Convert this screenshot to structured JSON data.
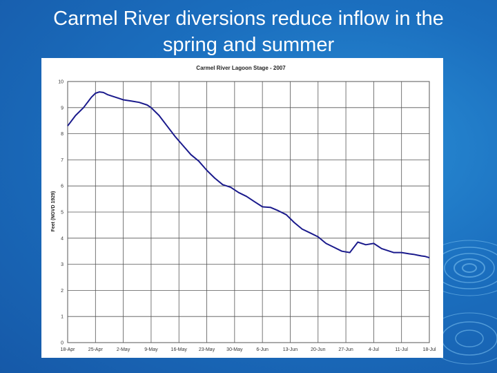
{
  "slide": {
    "title_line1": "Carmel River diversions reduce inflow in the",
    "title_line2": "spring and summer"
  },
  "colors": {
    "background": "#1b6fbf",
    "series_line": "#1a1a8c",
    "grid": "#555555"
  },
  "chart_data": {
    "type": "line",
    "title": "Carmel River Lagoon Stage - 2007",
    "xlabel": "",
    "ylabel": "Feet (NGVD 1929)",
    "ylim": [
      0,
      10
    ],
    "yticks": [
      0,
      1,
      2,
      3,
      4,
      5,
      6,
      7,
      8,
      9,
      10
    ],
    "xticks": [
      "18-Apr",
      "25-Apr",
      "2-May",
      "9-May",
      "16-May",
      "23-May",
      "30-May",
      "6-Jun",
      "13-Jun",
      "20-Jun",
      "27-Jun",
      "4-Jul",
      "11-Jul",
      "18-Jul"
    ],
    "x_unit": "days since 18-Apr",
    "xlim": [
      0,
      91
    ],
    "grid": true,
    "series": [
      {
        "name": "Lagoon Stage",
        "x": [
          0,
          2,
          4,
          6,
          7,
          8,
          9,
          10,
          11,
          12,
          13,
          14,
          16,
          18,
          20,
          21,
          23,
          25,
          27,
          29,
          31,
          33,
          35,
          37,
          39,
          41,
          43,
          45,
          47,
          49,
          51,
          53,
          55,
          57,
          59,
          61,
          63,
          65,
          67,
          69,
          71,
          73,
          75,
          77,
          78,
          79,
          80,
          81,
          82,
          84,
          86,
          87,
          88,
          89,
          90,
          91
        ],
        "y": [
          8.3,
          8.7,
          9.0,
          9.4,
          9.55,
          9.6,
          9.58,
          9.5,
          9.45,
          9.4,
          9.35,
          9.3,
          9.25,
          9.2,
          9.1,
          9.0,
          8.7,
          8.3,
          7.9,
          7.55,
          7.2,
          6.95,
          6.6,
          6.3,
          6.05,
          5.95,
          5.75,
          5.6,
          5.4,
          5.2,
          5.18,
          5.05,
          4.9,
          4.6,
          4.35,
          4.2,
          4.05,
          3.8,
          3.65,
          3.5,
          3.45,
          3.85,
          3.75,
          3.8,
          3.7,
          3.6,
          3.55,
          3.5,
          3.45,
          3.45,
          3.4,
          3.38,
          3.35,
          3.32,
          3.3,
          3.25
        ]
      }
    ]
  }
}
